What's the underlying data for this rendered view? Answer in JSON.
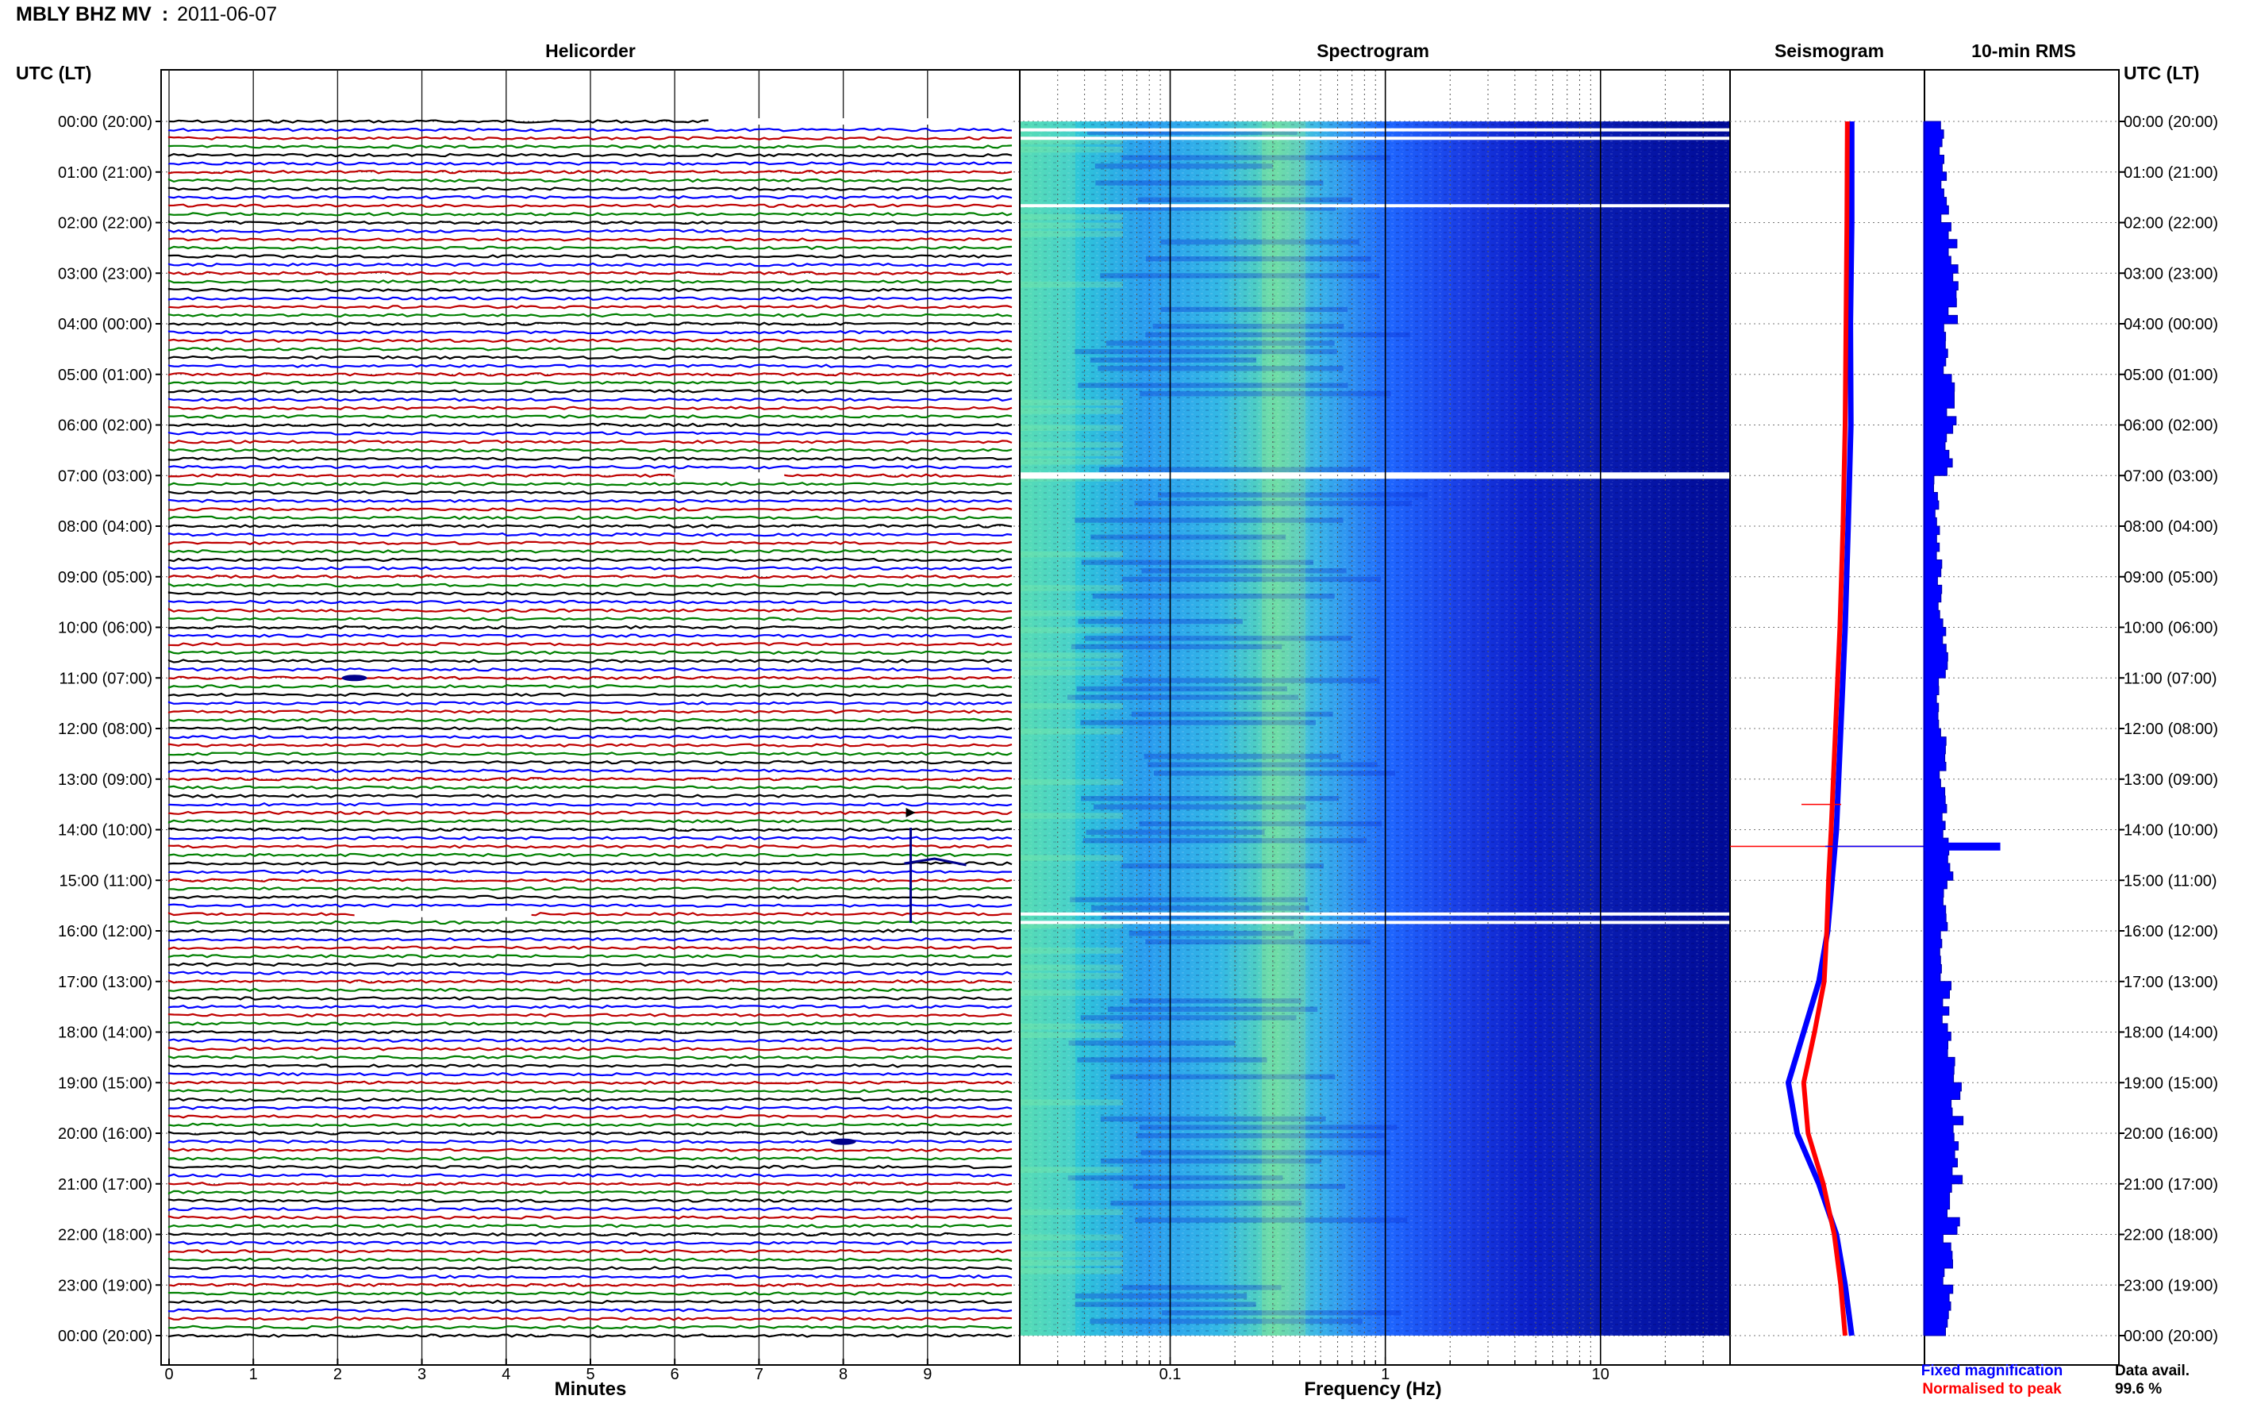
{
  "header": {
    "station": "MBLY BHZ MV",
    "separator": ":",
    "date": "2011-06-07"
  },
  "panels": {
    "helicorder": "Helicorder",
    "spectrogram": "Spectrogram",
    "seismogram": "Seismogram",
    "rms": "10-min RMS"
  },
  "axes": {
    "time_label_left": "UTC (LT)",
    "time_label_right": "UTC (LT)",
    "helicorder_xlabel": "Minutes",
    "spectrogram_xlabel": "Frequency (Hz)"
  },
  "legend": {
    "fixed": "Fixed magnification",
    "normalised": "Normalised to peak",
    "fixed_color": "#0000ff",
    "normalised_color": "#ff0000"
  },
  "data_availability": {
    "label": "Data avail.",
    "value": "99.6 %"
  },
  "colors": {
    "trace_cycle": [
      "#000000",
      "#0000ff",
      "#c00000",
      "#008000"
    ],
    "spectrogram_dark": "#00008b",
    "spectrogram_mid": "#1e6bff",
    "spectrogram_light": "#3ad6d6",
    "spectrogram_hot": "#b7f07a"
  },
  "chart_data": [
    {
      "type": "line",
      "title": "Helicorder",
      "xlabel": "Minutes",
      "ylabel": "UTC (LT)",
      "x_ticks": [
        "0",
        "1",
        "2",
        "3",
        "4",
        "5",
        "6",
        "7",
        "8",
        "9"
      ],
      "xlim": [
        0,
        10
      ],
      "time_ticks": [
        "00:00 (20:00)",
        "01:00 (21:00)",
        "02:00 (22:00)",
        "03:00 (23:00)",
        "04:00 (00:00)",
        "05:00 (01:00)",
        "06:00 (02:00)",
        "07:00 (03:00)",
        "08:00 (04:00)",
        "09:00 (05:00)",
        "10:00 (06:00)",
        "11:00 (07:00)",
        "12:00 (08:00)",
        "13:00 (09:00)",
        "14:00 (10:00)",
        "15:00 (11:00)",
        "16:00 (12:00)",
        "17:00 (13:00)",
        "18:00 (14:00)",
        "19:00 (15:00)",
        "20:00 (16:00)",
        "21:00 (17:00)",
        "22:00 (18:00)",
        "23:00 (19:00)",
        "00:00 (20:00)"
      ],
      "rows_per_hour": 6,
      "row_minutes": 10,
      "events": [
        {
          "time_utc": "14:40",
          "minute": 8.8,
          "amplitude": "large"
        },
        {
          "time_utc": "11:00",
          "minute": 2.2,
          "amplitude": "small"
        },
        {
          "time_utc": "20:10",
          "minute": 8.0,
          "amplitude": "small"
        }
      ],
      "gaps": [
        {
          "time_utc": "00:00",
          "minutes": [
            6.4,
            10.0
          ]
        },
        {
          "time_utc": "07:00",
          "minutes": [
            6.0,
            7.3
          ]
        },
        {
          "time_utc": "15:40",
          "minutes": [
            2.2,
            4.3
          ]
        }
      ]
    },
    {
      "type": "heatmap",
      "title": "Spectrogram",
      "xlabel": "Frequency (Hz)",
      "x_scale": "log",
      "x_ticks": [
        "0.1",
        "1",
        "10"
      ],
      "xlim": [
        0.02,
        40
      ],
      "gaps_utc": [
        "00:10",
        "00:20",
        "01:40",
        "07:00",
        "15:40",
        "15:50"
      ]
    },
    {
      "type": "line",
      "title": "Seismogram",
      "series": [
        {
          "name": "Fixed magnification",
          "x_hours": [
            0,
            2,
            4,
            6,
            8,
            10,
            12,
            14,
            15,
            16,
            17,
            18,
            19,
            20,
            21,
            22,
            23,
            24
          ],
          "values": [
            0.55,
            0.55,
            0.52,
            0.53,
            0.47,
            0.4,
            0.3,
            0.2,
            0.1,
            0.0,
            -0.2,
            -0.55,
            -0.9,
            -0.7,
            -0.2,
            0.2,
            0.4,
            0.55
          ]
        },
        {
          "name": "Normalised to peak",
          "x_hours": [
            0,
            2,
            4,
            6,
            8,
            10,
            12,
            14,
            15,
            16,
            17,
            18,
            19,
            20,
            21,
            22,
            23,
            24
          ],
          "values": [
            0.45,
            0.44,
            0.42,
            0.4,
            0.35,
            0.28,
            0.18,
            0.08,
            0.02,
            -0.02,
            -0.08,
            -0.3,
            -0.55,
            -0.45,
            -0.1,
            0.15,
            0.3,
            0.4
          ]
        }
      ]
    },
    {
      "type": "bar",
      "title": "10-min RMS",
      "baseline": 0,
      "spike_utc": "14:20",
      "hourly_typical": [
        0.1,
        0.1,
        0.14,
        0.14,
        0.1,
        0.14,
        0.12,
        0.06,
        0.08,
        0.08,
        0.1,
        0.08,
        0.09,
        0.1,
        0.12,
        0.12,
        0.08,
        0.12,
        0.14,
        0.16,
        0.16,
        0.15,
        0.12,
        0.12
      ],
      "spike_value": 0.75
    }
  ]
}
